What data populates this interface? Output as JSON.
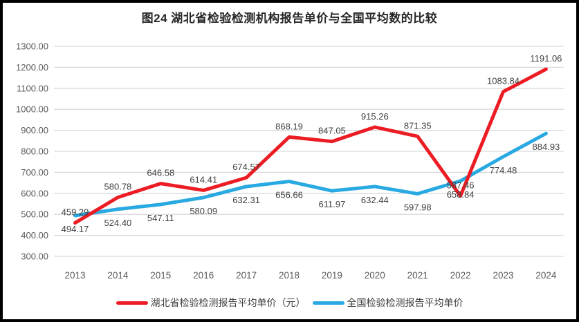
{
  "title": "图24 湖北省检验检测机构报告单价与全国平均数的比较",
  "colors": {
    "hubei_line": "#EC1C24",
    "national_line": "#29A9E1",
    "gridline": "#D9D9D9",
    "axis_text": "#595959",
    "data_label_text": "#404040",
    "title_text": "#262626",
    "frame": "#000000",
    "background": "#FFFFFF"
  },
  "chart_data": {
    "type": "line",
    "title": "图24 湖北省检验检测机构报告单价与全国平均数的比较",
    "xlabel": "",
    "ylabel": "",
    "categories": [
      "2013",
      "2014",
      "2015",
      "2016",
      "2017",
      "2018",
      "2019",
      "2020",
      "2021",
      "2022",
      "2023",
      "2024"
    ],
    "series": [
      {
        "key": "hubei",
        "name": "湖北省检验检测报告平均单价（元）",
        "color": "#EC1C24",
        "label_position": "above",
        "values": [
          459.29,
          580.78,
          646.58,
          614.41,
          674.57,
          868.19,
          847.05,
          915.26,
          871.35,
          587.46,
          1083.84,
          1191.06
        ]
      },
      {
        "key": "national",
        "name": "全国检验检测报告平均单价",
        "color": "#29A9E1",
        "label_position": "below",
        "values": [
          494.17,
          524.4,
          547.11,
          580.09,
          632.31,
          656.66,
          611.97,
          632.44,
          597.98,
          658.84,
          774.48,
          884.93
        ]
      }
    ],
    "ylim": [
      300,
      1300
    ],
    "yticks": [
      300,
      400,
      500,
      600,
      700,
      800,
      900,
      1000,
      1100,
      1200,
      1300
    ],
    "ytick_labels": [
      "300.00",
      "400.00",
      "500.00",
      "600.00",
      "700.00",
      "800.00",
      "900.00",
      "1000.00",
      "1100.00",
      "1200.00",
      "1300.00"
    ],
    "value_decimals": 2,
    "grid": true,
    "legend_position": "bottom"
  }
}
